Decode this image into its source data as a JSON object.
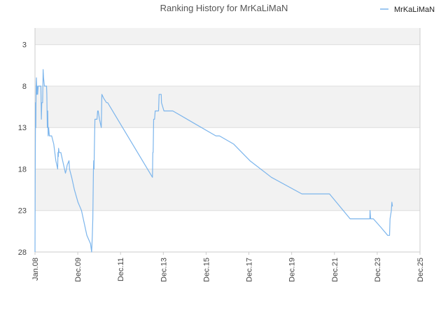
{
  "chart_data": {
    "type": "line",
    "title": "Ranking History for MrKaLiMaN",
    "xlabel": "",
    "ylabel": "",
    "x_ticks": [
      "Jan.08",
      "Dec.09",
      "Dec.11",
      "Dec.13",
      "Dec.15",
      "Dec.17",
      "Dec.19",
      "Dec.21",
      "Dec.23",
      "Dec.25"
    ],
    "y_ticks": [
      3,
      8,
      13,
      18,
      23,
      28
    ],
    "ylim": [
      28,
      1
    ],
    "y_inverted": true,
    "grid": true,
    "legend_position": "top-right",
    "colors": {
      "series": "#7cb5ec",
      "band": "#f2f2f2",
      "grid": "#dddddd",
      "axis": "#cccccc"
    },
    "series": [
      {
        "name": "MrKaLiMaN",
        "points": [
          [
            "2008-01-01",
            28
          ],
          [
            "2008-01-05",
            19
          ],
          [
            "2008-01-10",
            10
          ],
          [
            "2008-01-15",
            13
          ],
          [
            "2008-01-20",
            8
          ],
          [
            "2008-01-25",
            7
          ],
          [
            "2008-02-01",
            9
          ],
          [
            "2008-02-08",
            8
          ],
          [
            "2008-02-15",
            9
          ],
          [
            "2008-02-25",
            8
          ],
          [
            "2008-03-15",
            8
          ],
          [
            "2008-04-10",
            8
          ],
          [
            "2008-04-18",
            12
          ],
          [
            "2008-04-25",
            10
          ],
          [
            "2008-05-10",
            10
          ],
          [
            "2008-05-18",
            6
          ],
          [
            "2008-05-25",
            7
          ],
          [
            "2008-06-10",
            8
          ],
          [
            "2008-07-01",
            8
          ],
          [
            "2008-07-15",
            8
          ],
          [
            "2008-07-20",
            9
          ],
          [
            "2008-07-28",
            13
          ],
          [
            "2008-08-05",
            11
          ],
          [
            "2008-08-12",
            14
          ],
          [
            "2008-08-20",
            13
          ],
          [
            "2008-09-01",
            14
          ],
          [
            "2008-10-10",
            14
          ],
          [
            "2008-11-15",
            15
          ],
          [
            "2008-12-20",
            17
          ],
          [
            "2009-01-20",
            18
          ],
          [
            "2009-01-25",
            16
          ],
          [
            "2009-02-01",
            16.5
          ],
          [
            "2009-02-05",
            15.5
          ],
          [
            "2009-02-15",
            16
          ],
          [
            "2009-03-15",
            16
          ],
          [
            "2009-04-15",
            17
          ],
          [
            "2009-06-01",
            18.5
          ],
          [
            "2009-06-20",
            18
          ],
          [
            "2009-07-01",
            17.5
          ],
          [
            "2009-08-01",
            17
          ],
          [
            "2009-08-10",
            18
          ],
          [
            "2009-09-15",
            19
          ],
          [
            "2009-11-01",
            20.5
          ],
          [
            "2010-01-01",
            22
          ],
          [
            "2010-03-01",
            23
          ],
          [
            "2010-06-01",
            26
          ],
          [
            "2010-08-01",
            27
          ],
          [
            "2010-08-20",
            28
          ],
          [
            "2010-09-01",
            26
          ],
          [
            "2010-09-10",
            24
          ],
          [
            "2010-09-20",
            18
          ],
          [
            "2010-09-25",
            17
          ],
          [
            "2010-10-01",
            18
          ],
          [
            "2010-10-05",
            16
          ],
          [
            "2010-10-15",
            12
          ],
          [
            "2010-11-01",
            12
          ],
          [
            "2010-11-20",
            12
          ],
          [
            "2010-12-01",
            11
          ],
          [
            "2010-12-10",
            11
          ],
          [
            "2011-01-01",
            12
          ],
          [
            "2011-02-01",
            13
          ],
          [
            "2011-02-10",
            9
          ],
          [
            "2011-03-15",
            9.5
          ],
          [
            "2011-05-01",
            10
          ],
          [
            "2011-05-20",
            10
          ],
          [
            "2013-06-20",
            19
          ],
          [
            "2013-06-25",
            16
          ],
          [
            "2013-07-01",
            16
          ],
          [
            "2013-07-10",
            12
          ],
          [
            "2013-07-25",
            12
          ],
          [
            "2013-08-05",
            11
          ],
          [
            "2013-10-01",
            11
          ],
          [
            "2013-10-10",
            9
          ],
          [
            "2013-11-15",
            9
          ],
          [
            "2013-11-20",
            10
          ],
          [
            "2014-01-01",
            11
          ],
          [
            "2014-03-01",
            11
          ],
          [
            "2014-06-01",
            11
          ],
          [
            "2015-06-01",
            12.5
          ],
          [
            "2016-06-01",
            14
          ],
          [
            "2016-08-01",
            14
          ],
          [
            "2017-04-01",
            15
          ],
          [
            "2018-01-01",
            17
          ],
          [
            "2019-01-01",
            19
          ],
          [
            "2020-06-01",
            21
          ],
          [
            "2021-09-15",
            21
          ],
          [
            "2022-09-01",
            24
          ],
          [
            "2023-08-01",
            24
          ],
          [
            "2023-08-05",
            23
          ],
          [
            "2023-08-15",
            24
          ],
          [
            "2023-10-01",
            24
          ],
          [
            "2024-02-01",
            25
          ],
          [
            "2024-06-01",
            26
          ],
          [
            "2024-07-01",
            26
          ],
          [
            "2024-07-10",
            24
          ],
          [
            "2024-08-01",
            23
          ],
          [
            "2024-08-10",
            22
          ],
          [
            "2024-08-20",
            22.5
          ]
        ]
      }
    ]
  }
}
